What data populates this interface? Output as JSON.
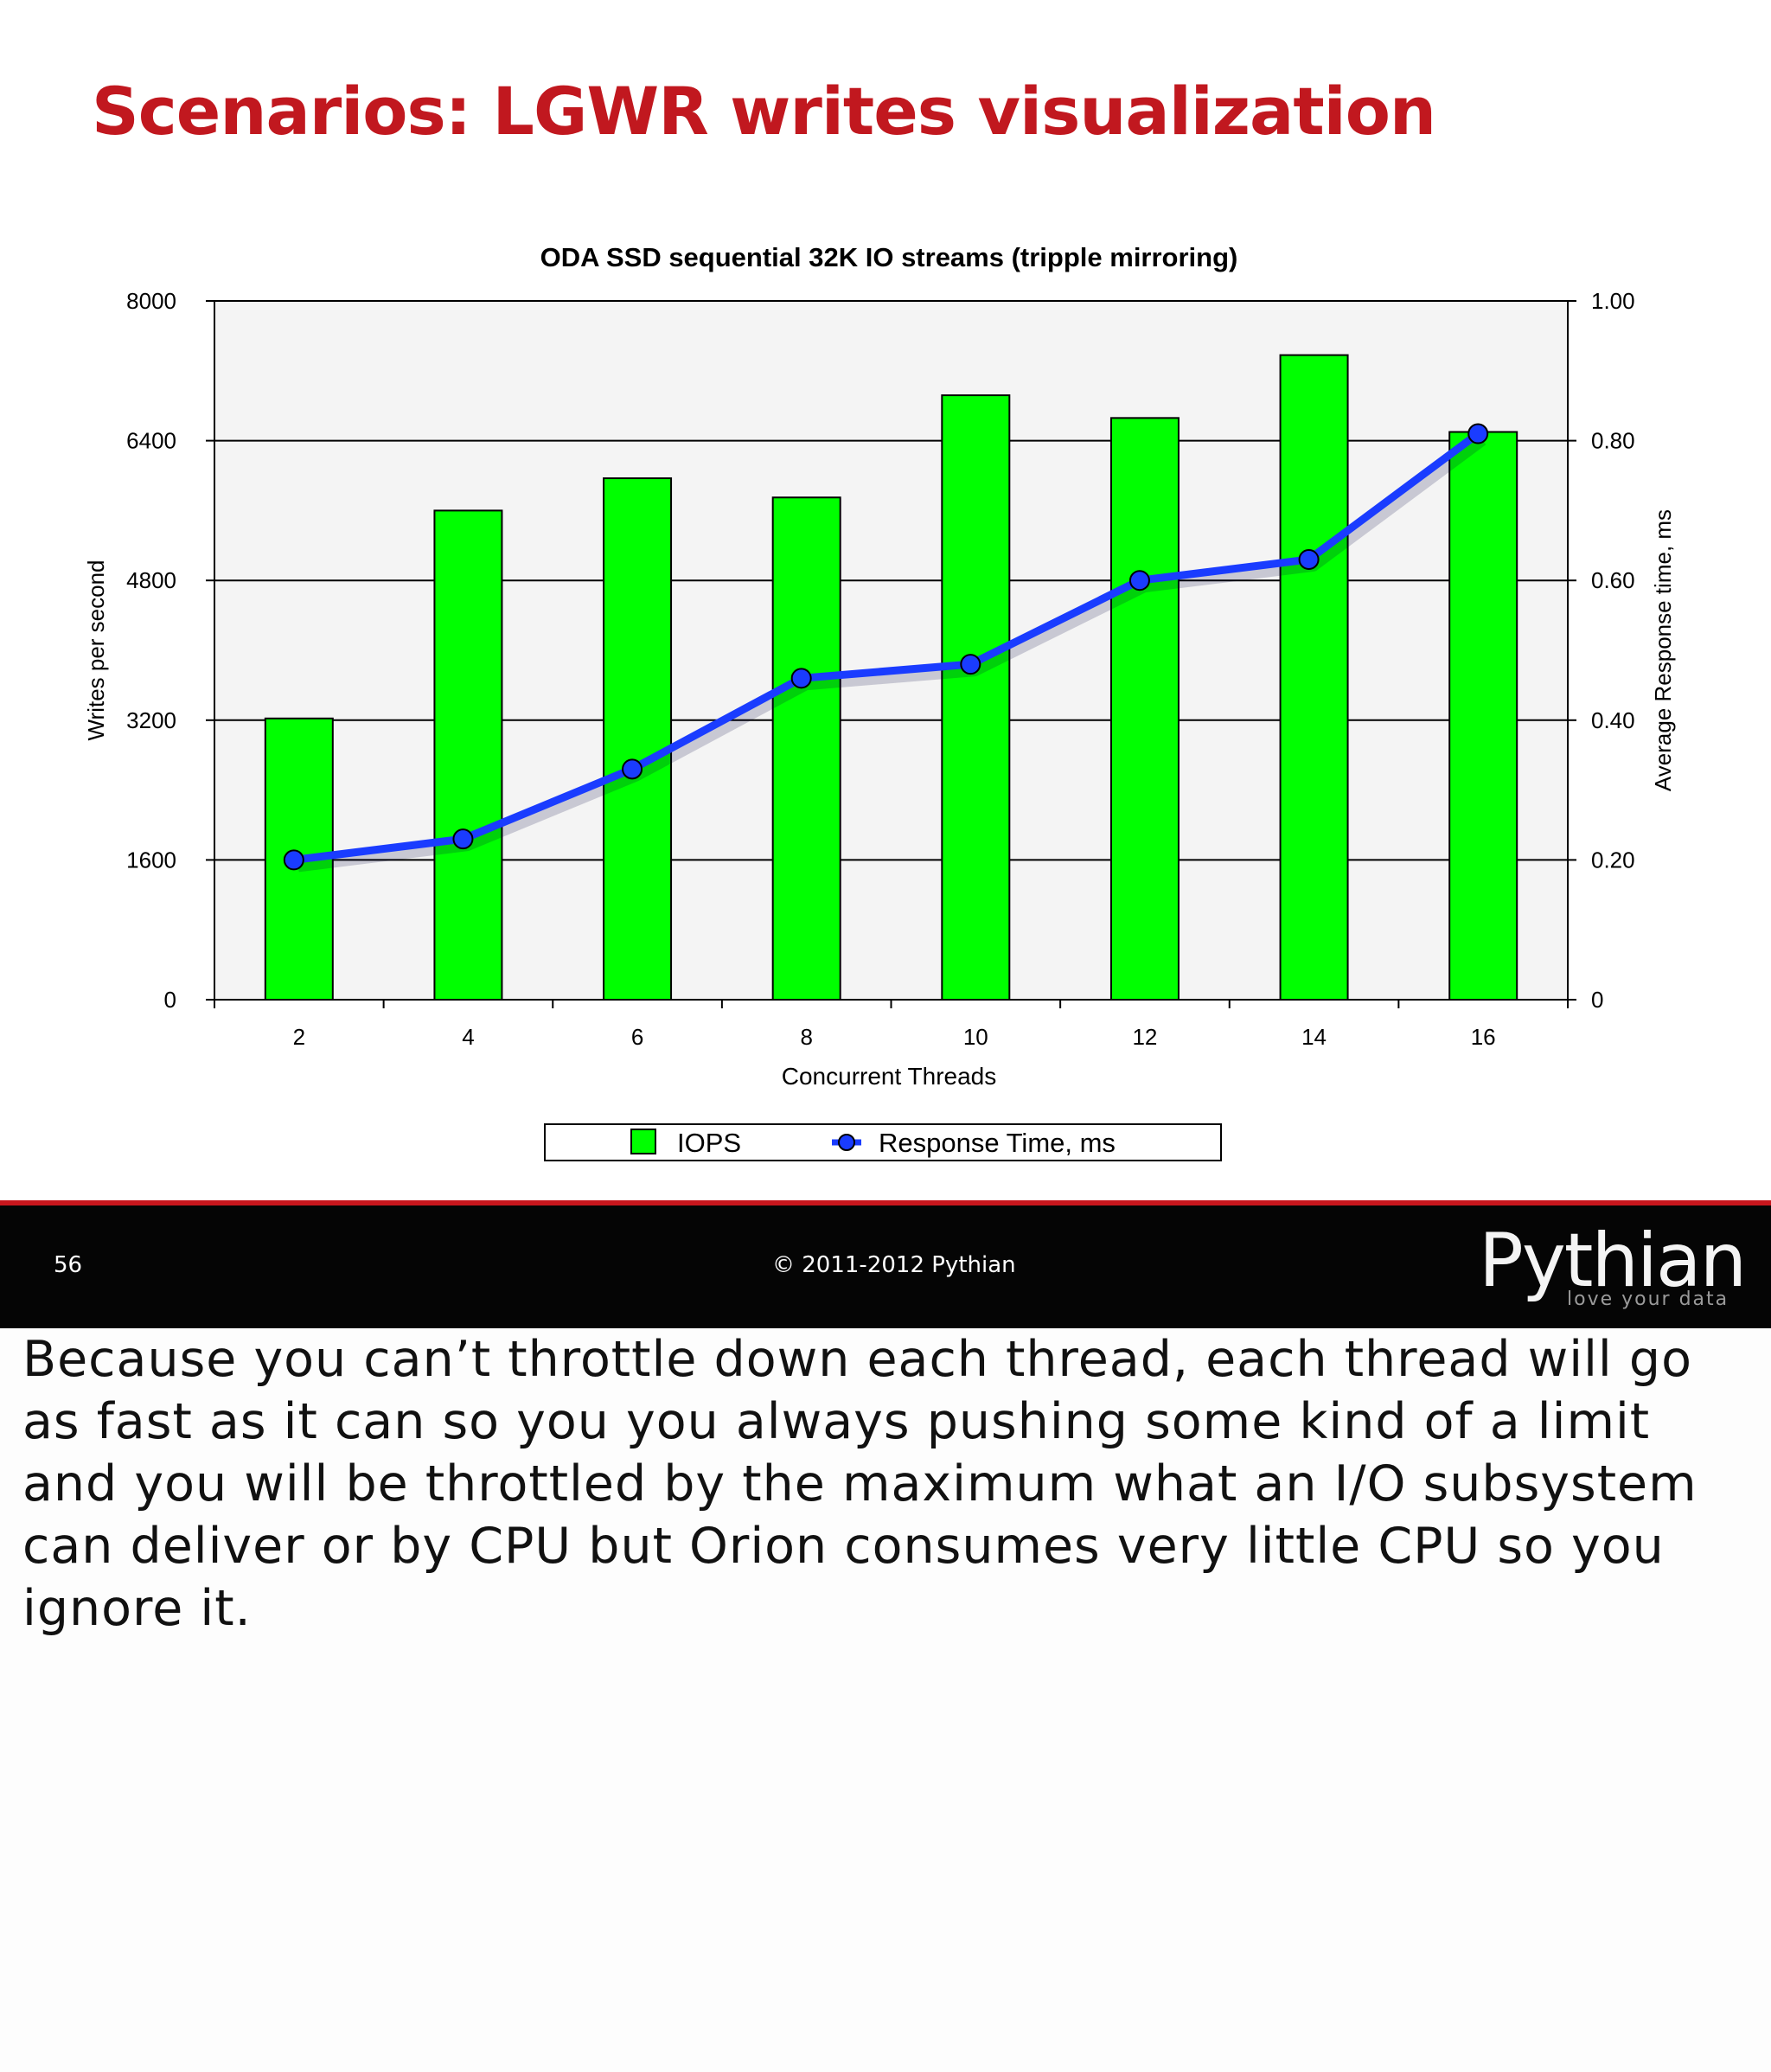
{
  "slide": {
    "title": "Scenarios: LGWR writes visualization",
    "slide_number": "56",
    "copyright": "© 2011-2012 Pythian",
    "brand_name": "Pythian",
    "brand_tagline": "love your data"
  },
  "caption": "Because you can’t throttle down each thread, each thread will go as fast as it can so you you always pushing some kind of a limit and you will be throttled by the maximum what an I/O subsystem can deliver or by CPU but Orion consumes very little CPU so you ignore it.",
  "colors": {
    "title_red": "#c1181f",
    "bar_green": "#00ff00",
    "line_blue": "#1a3cff",
    "footer_black": "#050505"
  },
  "chart_data": {
    "type": "bar",
    "title": "ODA SSD sequential 32K IO streams (tripple mirroring)",
    "xlabel": "Concurrent Threads",
    "ylabel": "Writes per second",
    "y2label": "Average Response time, ms",
    "categories": [
      "2",
      "4",
      "6",
      "8",
      "10",
      "12",
      "14",
      "16"
    ],
    "ylim": [
      0,
      8000
    ],
    "y2lim": [
      0,
      1.0
    ],
    "yticks": [
      "0",
      "1600",
      "3200",
      "4800",
      "6400",
      "8000"
    ],
    "y2ticks": [
      "0",
      "0.20",
      "0.40",
      "0.60",
      "0.80",
      "1.00"
    ],
    "grid": true,
    "legend_position": "bottom",
    "series": [
      {
        "name": "IOPS",
        "type": "bar",
        "axis": "left",
        "color": "#00ff00",
        "values": [
          3220,
          5600,
          5970,
          5750,
          6920,
          6660,
          7380,
          6500
        ]
      },
      {
        "name": "Response Time, ms",
        "type": "line",
        "axis": "right",
        "color": "#1a3cff",
        "values": [
          0.2,
          0.23,
          0.33,
          0.46,
          0.48,
          0.6,
          0.63,
          0.81
        ]
      }
    ]
  }
}
